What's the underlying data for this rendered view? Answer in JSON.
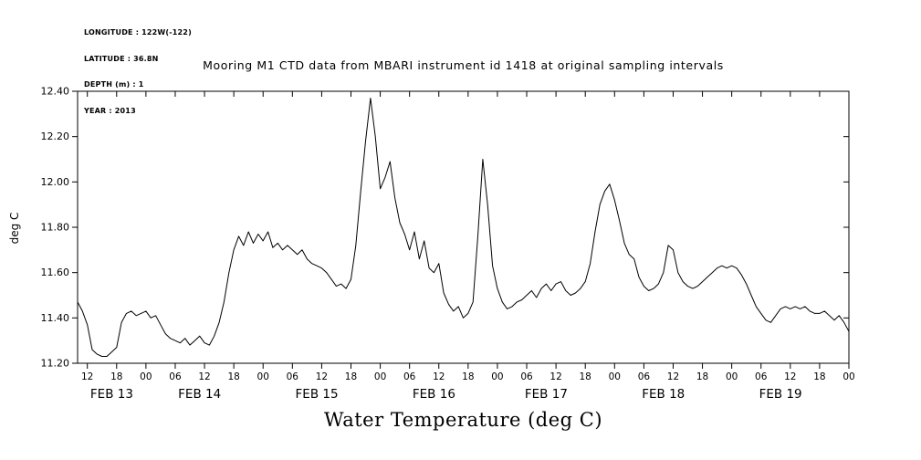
{
  "metadata": {
    "longitude": "LONGITUDE : 122W(-122)",
    "latitude": "LATITUDE : 36.8N",
    "depth": "DEPTH (m) : 1",
    "year": "YEAR : 2013"
  },
  "chart_data": {
    "type": "line",
    "title": "Mooring M1 CTD data from MBARI instrument id 1418 at original sampling intervals",
    "xlabel": "Water Temperature (deg C)",
    "ylabel": "deg C",
    "ylim": [
      11.2,
      12.4
    ],
    "y_ticks": [
      11.2,
      11.4,
      11.6,
      11.8,
      12.0,
      12.2,
      12.4
    ],
    "x_domain_hours": [
      10,
      168
    ],
    "x_ticks": [
      {
        "hour": 12,
        "label": "12"
      },
      {
        "hour": 18,
        "label": "18"
      },
      {
        "hour": 24,
        "label": "00"
      },
      {
        "hour": 30,
        "label": "06"
      },
      {
        "hour": 36,
        "label": "12"
      },
      {
        "hour": 42,
        "label": "18"
      },
      {
        "hour": 48,
        "label": "00"
      },
      {
        "hour": 54,
        "label": "06"
      },
      {
        "hour": 60,
        "label": "12"
      },
      {
        "hour": 66,
        "label": "18"
      },
      {
        "hour": 72,
        "label": "00"
      },
      {
        "hour": 78,
        "label": "06"
      },
      {
        "hour": 84,
        "label": "12"
      },
      {
        "hour": 90,
        "label": "18"
      },
      {
        "hour": 96,
        "label": "00"
      },
      {
        "hour": 102,
        "label": "06"
      },
      {
        "hour": 108,
        "label": "12"
      },
      {
        "hour": 114,
        "label": "18"
      },
      {
        "hour": 120,
        "label": "00"
      },
      {
        "hour": 126,
        "label": "06"
      },
      {
        "hour": 132,
        "label": "12"
      },
      {
        "hour": 138,
        "label": "18"
      },
      {
        "hour": 144,
        "label": "00"
      },
      {
        "hour": 150,
        "label": "06"
      },
      {
        "hour": 156,
        "label": "12"
      },
      {
        "hour": 162,
        "label": "18"
      },
      {
        "hour": 168,
        "label": "00"
      }
    ],
    "day_labels": [
      {
        "hour": 17,
        "label": "FEB 13"
      },
      {
        "hour": 35,
        "label": "FEB 14"
      },
      {
        "hour": 59,
        "label": "FEB 15"
      },
      {
        "hour": 83,
        "label": "FEB 16"
      },
      {
        "hour": 106,
        "label": "FEB 17"
      },
      {
        "hour": 130,
        "label": "FEB 18"
      },
      {
        "hour": 154,
        "label": "FEB 19"
      }
    ],
    "grid": false,
    "legend": false,
    "line_color": "#000000",
    "series": [
      {
        "name": "water temperature (deg C)",
        "x_hours_start": 10,
        "x_hours_step": 1,
        "values": [
          11.47,
          11.43,
          11.37,
          11.26,
          11.24,
          11.23,
          11.23,
          11.25,
          11.27,
          11.38,
          11.42,
          11.43,
          11.41,
          11.42,
          11.43,
          11.4,
          11.41,
          11.37,
          11.33,
          11.31,
          11.3,
          11.29,
          11.31,
          11.28,
          11.3,
          11.32,
          11.29,
          11.28,
          11.32,
          11.38,
          11.47,
          11.6,
          11.7,
          11.76,
          11.72,
          11.78,
          11.73,
          11.77,
          11.74,
          11.78,
          11.71,
          11.73,
          11.7,
          11.72,
          11.7,
          11.68,
          11.7,
          11.66,
          11.64,
          11.63,
          11.62,
          11.6,
          11.57,
          11.54,
          11.55,
          11.53,
          11.57,
          11.72,
          11.96,
          12.18,
          12.37,
          12.2,
          11.97,
          12.02,
          12.09,
          11.93,
          11.82,
          11.77,
          11.7,
          11.78,
          11.66,
          11.74,
          11.62,
          11.6,
          11.64,
          11.51,
          11.46,
          11.43,
          11.45,
          11.4,
          11.42,
          11.47,
          11.76,
          12.1,
          11.9,
          11.63,
          11.53,
          11.47,
          11.44,
          11.45,
          11.47,
          11.48,
          11.5,
          11.52,
          11.49,
          11.53,
          11.55,
          11.52,
          11.55,
          11.56,
          11.52,
          11.5,
          11.51,
          11.53,
          11.56,
          11.64,
          11.78,
          11.9,
          11.96,
          11.99,
          11.92,
          11.83,
          11.73,
          11.68,
          11.66,
          11.58,
          11.54,
          11.52,
          11.53,
          11.55,
          11.6,
          11.72,
          11.7,
          11.6,
          11.56,
          11.54,
          11.53,
          11.54,
          11.56,
          11.58,
          11.6,
          11.62,
          11.63,
          11.62,
          11.63,
          11.62,
          11.59,
          11.55,
          11.5,
          11.45,
          11.42,
          11.39,
          11.38,
          11.41,
          11.44,
          11.45,
          11.44,
          11.45,
          11.44,
          11.45,
          11.43,
          11.42,
          11.42,
          11.43,
          11.41,
          11.39,
          11.41,
          11.38,
          11.34
        ]
      }
    ]
  }
}
